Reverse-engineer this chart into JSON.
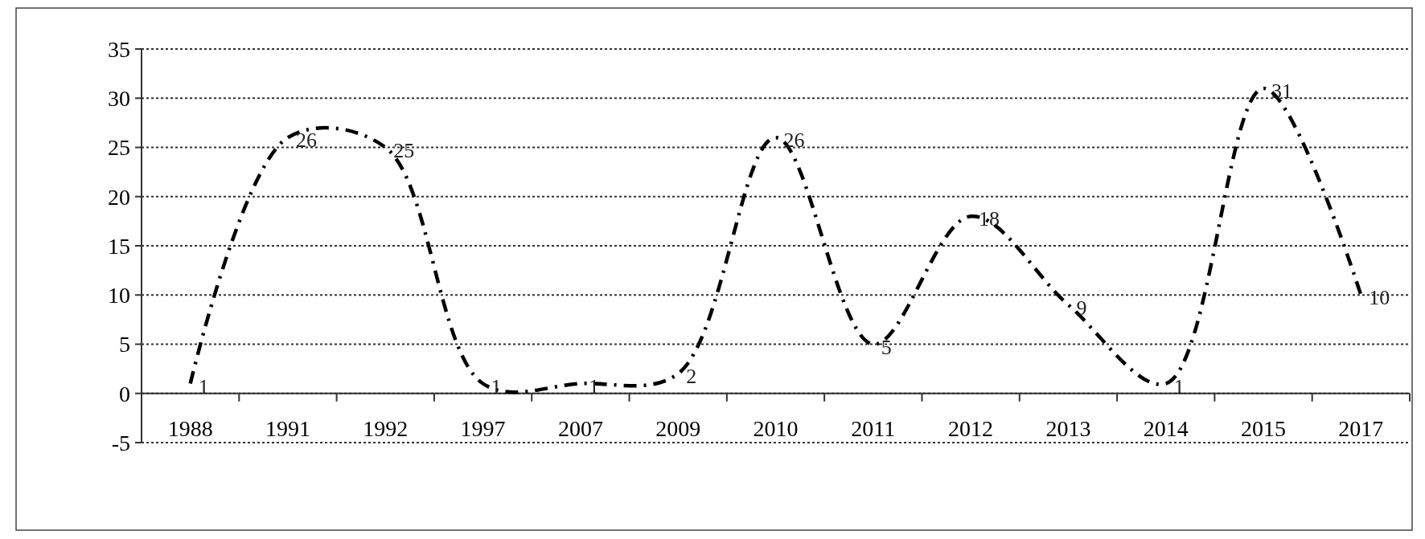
{
  "chart_data": {
    "type": "line",
    "categories": [
      "1988",
      "1991",
      "1992",
      "1997",
      "2007",
      "2009",
      "2010",
      "2011",
      "2012",
      "2013",
      "2014",
      "2015",
      "2017"
    ],
    "series": [
      {
        "color": "#000000",
        "values": [
          1,
          26,
          25,
          1,
          1,
          2,
          26,
          5,
          18,
          9,
          1,
          31,
          10
        ]
      }
    ],
    "ylim": [
      -5,
      35
    ],
    "yticks": [
      -5,
      0,
      5,
      10,
      15,
      20,
      25,
      30,
      35
    ],
    "grid": "y",
    "line_style": "dashed",
    "marker": "none",
    "data_labels": true
  }
}
